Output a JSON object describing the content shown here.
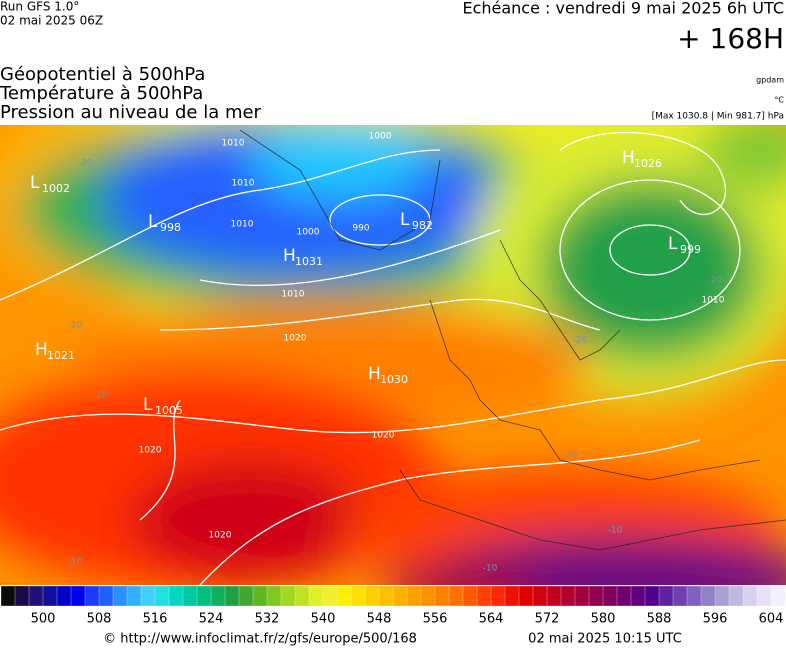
{
  "header": {
    "run": "Run GFS 1.0°",
    "init": "02 mai 2025 06Z",
    "valid": "Echéance : vendredi 9 mai 2025 6h UTC",
    "lead": "+ 168H"
  },
  "titles": [
    "Géopotentiel à 500hPa",
    "Température à 500hPa",
    "Pression au niveau de la mer"
  ],
  "units": {
    "geopotential": "gpdam",
    "temperature": "°C",
    "pressure": "[Max 1030.8 | Min 981.7] hPa"
  },
  "pressure_centers": [
    {
      "letter": "L",
      "value": "1002"
    },
    {
      "letter": "L",
      "value": "998"
    },
    {
      "letter": "H",
      "value": "1031"
    },
    {
      "letter": "L",
      "value": "982"
    },
    {
      "letter": "H",
      "value": "1026"
    },
    {
      "letter": "L",
      "value": "999"
    },
    {
      "letter": "H",
      "value": "1021"
    },
    {
      "letter": "H",
      "value": "1030"
    },
    {
      "letter": "L",
      "value": "1005"
    }
  ],
  "isobar_labels": [
    "1010",
    "1000",
    "1010",
    "1010",
    "1000",
    "990",
    "1010",
    "1020",
    "1020",
    "1020",
    "1020",
    "1010"
  ],
  "temperature_labels": [
    "-20",
    "-20",
    "-20",
    "-20",
    "-20",
    "-20",
    "-10",
    "-10",
    "-10"
  ],
  "colorbar": {
    "lim": [
      494,
      606
    ],
    "ticks": [
      500,
      508,
      516,
      524,
      532,
      540,
      548,
      556,
      564,
      572,
      580,
      588,
      596,
      604
    ],
    "colors": [
      "#0a0a0a",
      "#1a0a4a",
      "#20107a",
      "#1010a0",
      "#0000c8",
      "#0000f0",
      "#1a3cff",
      "#2060ff",
      "#2890ff",
      "#30b0ff",
      "#40d0ff",
      "#20e0e0",
      "#00d8c0",
      "#00c8a0",
      "#00c080",
      "#10b060",
      "#20a040",
      "#40a830",
      "#60b820",
      "#80c820",
      "#a0d820",
      "#c0e020",
      "#e0f020",
      "#f0f030",
      "#fff000",
      "#ffe000",
      "#ffd000",
      "#ffc000",
      "#ffb000",
      "#ffa000",
      "#ff9000",
      "#ff8000",
      "#ff7000",
      "#ff5800",
      "#ff4000",
      "#ff2800",
      "#f01000",
      "#e00000",
      "#d00010",
      "#c00020",
      "#b00030",
      "#a00040",
      "#900050",
      "#800060",
      "#700070",
      "#600080",
      "#500090",
      "#6020a0",
      "#7040b0",
      "#8060c0",
      "#9080c8",
      "#a8a0d0",
      "#c0b8e0",
      "#d8d0f0",
      "#e8e0f8",
      "#f0f0ff"
    ]
  },
  "footer": {
    "source": "© http://www.infoclimat.fr/z/gfs/europe/500/168",
    "generated": "02 mai 2025 10:15 UTC"
  }
}
